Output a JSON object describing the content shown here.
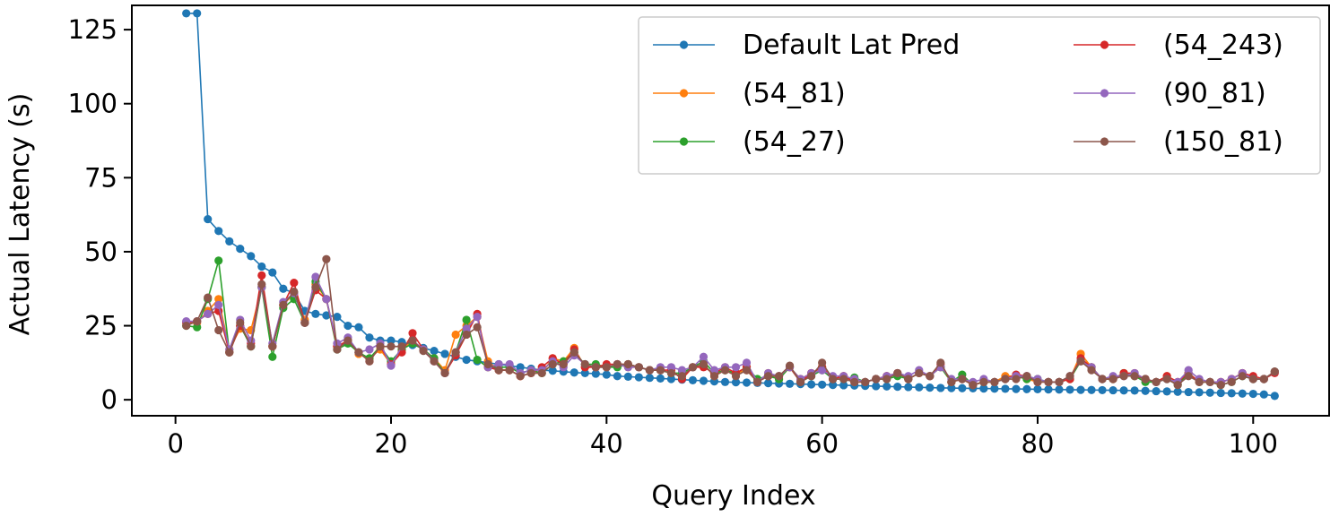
{
  "chart_data": {
    "type": "line",
    "title": "",
    "xlabel": "Query Index",
    "ylabel": "Actual Latency (s)",
    "xlim": [
      -4.05,
      107.05
    ],
    "ylim": [
      -5.4,
      133.2
    ],
    "xticks": [
      0,
      20,
      40,
      60,
      80,
      100
    ],
    "xtick_labels": [
      "0",
      "20",
      "40",
      "60",
      "80",
      "100"
    ],
    "yticks": [
      0,
      25,
      50,
      75,
      100,
      125
    ],
    "ytick_labels": [
      "0",
      "25",
      "50",
      "75",
      "100",
      "125"
    ],
    "grid": false,
    "legend": {
      "placement": "top-right",
      "columns": 2
    },
    "x": [
      1,
      2,
      3,
      4,
      5,
      6,
      7,
      8,
      9,
      10,
      11,
      12,
      13,
      14,
      15,
      16,
      17,
      18,
      19,
      20,
      21,
      22,
      23,
      24,
      25,
      26,
      27,
      28,
      29,
      30,
      31,
      32,
      33,
      34,
      35,
      36,
      37,
      38,
      39,
      40,
      41,
      42,
      43,
      44,
      45,
      46,
      47,
      48,
      49,
      50,
      51,
      52,
      53,
      54,
      55,
      56,
      57,
      58,
      59,
      60,
      61,
      62,
      63,
      64,
      65,
      66,
      67,
      68,
      69,
      70,
      71,
      72,
      73,
      74,
      75,
      76,
      77,
      78,
      79,
      80,
      81,
      82,
      83,
      84,
      85,
      86,
      87,
      88,
      89,
      90,
      91,
      92,
      93,
      94,
      95,
      96,
      97,
      98,
      99,
      100,
      101,
      102
    ],
    "series": [
      {
        "name": "Default Lat Pred",
        "color": "#1f77b4",
        "values": [
          130.5,
          130.5,
          61,
          57,
          53.5,
          51,
          48.5,
          45,
          43,
          37.5,
          36,
          30,
          29,
          28.5,
          28,
          25,
          24.5,
          21,
          20,
          20,
          19.5,
          18.5,
          17.5,
          16.5,
          15.5,
          14.5,
          13.5,
          13,
          12.5,
          12,
          11.5,
          11,
          10.5,
          10,
          9.8,
          9.5,
          9.2,
          9,
          8.8,
          8.5,
          8,
          7.8,
          7.6,
          7.4,
          7.2,
          7,
          6.8,
          6.6,
          6.4,
          6.2,
          6,
          5.9,
          5.8,
          5.7,
          5.6,
          5.5,
          5.4,
          5.3,
          5.2,
          5.1,
          5,
          4.9,
          4.8,
          4.7,
          4.6,
          4.5,
          4.4,
          4.3,
          4.2,
          4.1,
          4,
          3.95,
          3.9,
          3.85,
          3.8,
          3.75,
          3.7,
          3.65,
          3.6,
          3.55,
          3.5,
          3.45,
          3.4,
          3.35,
          3.3,
          3.25,
          3.2,
          3.15,
          3.1,
          3,
          2.9,
          2.8,
          2.7,
          2.6,
          2.5,
          2.4,
          2.3,
          2.2,
          2.1,
          2,
          1.8,
          1.3
        ]
      },
      {
        "name": "(54_81)",
        "color": "#ff7f0e",
        "values": [
          26,
          26,
          30,
          34,
          17,
          24,
          23.5,
          38,
          18,
          32,
          36,
          27,
          39,
          34,
          18,
          20,
          15.5,
          14,
          17,
          12,
          17,
          20,
          17,
          14,
          10,
          22,
          25,
          28,
          13,
          10,
          10,
          8,
          9,
          9,
          14,
          13,
          17.5,
          11,
          11,
          11,
          12,
          11,
          11,
          10,
          10,
          9,
          8,
          11,
          12,
          8,
          10,
          9,
          10,
          6,
          9,
          7,
          11,
          7,
          9,
          11,
          7,
          8,
          6,
          6,
          7,
          8,
          9,
          7,
          9,
          8,
          11,
          6,
          7,
          5,
          6,
          6,
          8,
          8,
          7,
          6,
          6,
          6,
          7,
          15.5,
          11,
          7,
          7,
          9,
          8,
          7,
          6,
          8,
          6,
          9,
          6,
          6,
          6,
          7,
          9,
          7,
          7,
          9.5
        ]
      },
      {
        "name": "(54_27)",
        "color": "#2ca02c",
        "values": [
          25,
          24.5,
          34,
          47,
          16,
          25,
          18,
          38,
          14.5,
          31,
          34,
          26,
          40,
          34,
          17,
          19,
          16,
          14,
          18,
          13,
          17,
          19,
          17,
          14,
          9,
          16,
          27,
          13.5,
          11,
          11,
          11,
          9,
          10,
          9,
          12,
          13,
          16,
          12,
          12,
          11,
          11,
          12,
          11,
          10,
          10,
          9,
          9,
          11,
          13,
          9,
          10,
          9,
          11,
          7,
          8,
          7,
          11,
          6,
          8,
          10,
          7,
          7,
          7.5,
          6,
          7,
          7,
          8,
          7,
          9,
          8,
          11,
          6,
          8.5,
          5,
          6,
          6,
          7,
          8,
          7,
          7,
          6,
          6,
          7,
          13,
          11,
          7,
          7,
          9,
          8,
          6,
          6,
          7,
          5,
          9,
          6,
          6,
          5,
          6,
          8,
          7,
          7,
          9.5
        ]
      },
      {
        "name": "(54_243)",
        "color": "#d62728",
        "values": [
          26,
          26.5,
          29,
          30,
          16,
          25,
          19,
          42,
          18,
          32,
          39.5,
          26,
          37,
          34,
          18,
          20,
          16,
          13,
          18,
          12,
          16,
          22.5,
          17,
          13,
          9,
          15,
          22,
          29,
          11,
          10,
          10,
          8,
          9,
          11,
          14,
          12,
          17,
          11,
          11,
          12,
          12,
          12,
          11,
          10,
          10,
          10,
          7,
          11,
          11,
          9,
          11,
          9,
          11,
          6,
          8,
          8,
          11,
          6,
          9,
          11,
          7,
          8,
          6,
          6,
          7,
          8,
          9,
          7,
          9,
          8,
          12,
          6,
          7,
          5,
          6,
          6,
          7,
          8.5,
          8,
          6,
          6,
          6,
          7,
          14,
          11,
          7,
          7,
          9,
          9,
          7,
          6,
          8,
          6,
          9,
          6,
          6,
          6,
          7,
          9,
          8,
          7,
          9
        ]
      },
      {
        "name": "(90_81)",
        "color": "#9467bd",
        "values": [
          26.5,
          26.5,
          29,
          32,
          17,
          27,
          20,
          38,
          19,
          33,
          36,
          26,
          41.5,
          34,
          19,
          21,
          16,
          17,
          19,
          11.5,
          18,
          20,
          17,
          13,
          9,
          16,
          24,
          28,
          11,
          12,
          12,
          9,
          10,
          10,
          13,
          11,
          15,
          12,
          11,
          11,
          12,
          11,
          11,
          10,
          11,
          11,
          10,
          11,
          14.5,
          10,
          11,
          11,
          12.5,
          6,
          9,
          8,
          11,
          7,
          9,
          10,
          8,
          8,
          7,
          6,
          7,
          8,
          9,
          8,
          10,
          8,
          11,
          7,
          7,
          6,
          7,
          6,
          7,
          8,
          8,
          7,
          6,
          6,
          8,
          13,
          11,
          7,
          8,
          8,
          9,
          7,
          6,
          7,
          6,
          10,
          7,
          6,
          6,
          7,
          9,
          7,
          7,
          9.5
        ]
      },
      {
        "name": "(150_81)",
        "color": "#8c564b",
        "values": [
          25,
          26.5,
          34.5,
          23.5,
          16,
          26,
          18,
          39,
          18,
          32,
          36.5,
          26,
          38,
          47.5,
          17,
          20,
          16,
          13,
          18,
          18,
          18,
          20,
          16.5,
          13,
          9,
          16,
          22,
          24.5,
          12,
          10,
          10,
          8,
          9,
          9,
          12,
          12,
          16,
          12,
          11,
          11,
          12,
          12,
          11,
          10,
          10,
          9,
          8,
          11,
          12,
          8,
          10,
          8,
          10,
          6,
          8,
          8,
          11.5,
          6,
          8,
          12.5,
          7,
          7,
          6,
          6,
          7,
          7,
          9,
          7,
          9,
          8,
          12.5,
          6,
          7,
          5,
          6,
          6,
          7,
          7,
          8,
          6,
          6,
          6,
          8,
          13,
          10,
          7,
          7,
          8,
          8,
          7,
          6,
          7,
          5,
          8,
          6,
          6,
          5,
          6,
          8,
          7,
          7,
          9.5
        ]
      }
    ]
  }
}
